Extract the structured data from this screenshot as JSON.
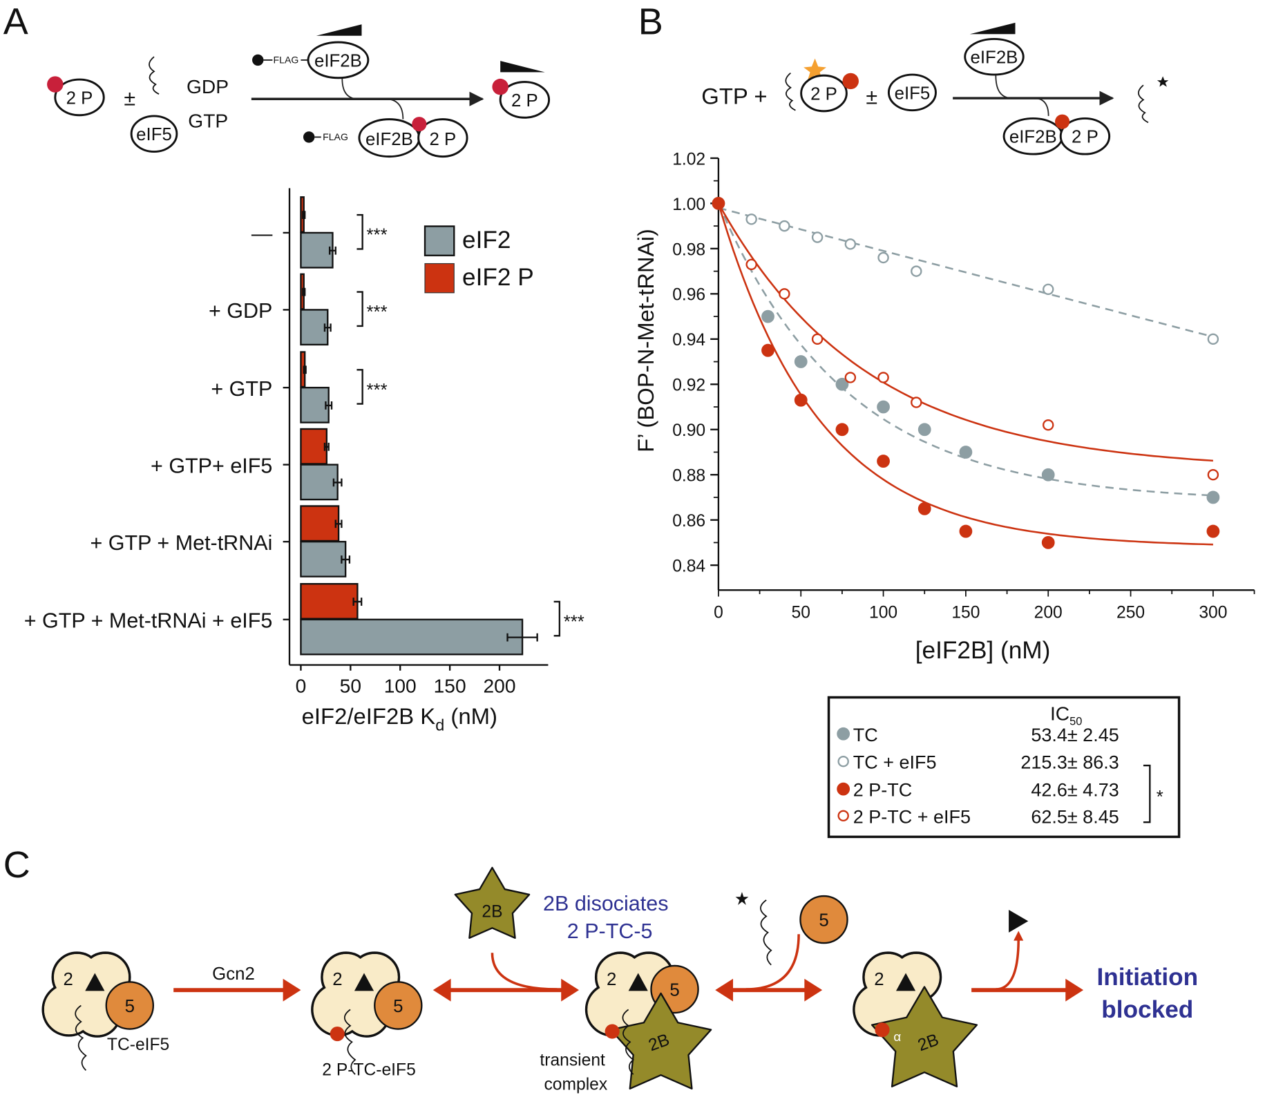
{
  "panel_labels": {
    "a": "A",
    "b": "B",
    "c": "C"
  },
  "scheme_a": {
    "eif2p": "2 P",
    "pm": "±",
    "gdp": "GDP",
    "gtp": "GTP",
    "eif5": "eIF5",
    "flag": "FLAG",
    "eif2b": "eIF2B",
    "complex_2p": "2 P",
    "product": "2 P"
  },
  "scheme_b": {
    "gtp_plus": "GTP +",
    "eif2p": "2 P",
    "pm": "±",
    "eif5": "eIF5",
    "eif2b": "eIF2B",
    "complex_eif2b": "eIF2B",
    "complex_2p": "2 P"
  },
  "chart_data": [
    {
      "type": "bar",
      "orientation": "horizontal",
      "categories": [
        "—",
        "+ GDP",
        "+ GTP",
        "+ GTP+ eIF5",
        "+ GTP + Met-tRNAi",
        "+ GTP + Met-tRNAi + eIF5"
      ],
      "series": [
        {
          "name": "eIF2 P",
          "color": "#cc3311",
          "values": [
            3,
            3,
            4,
            26,
            38,
            57
          ],
          "errors": [
            1,
            1,
            1,
            2,
            3,
            4
          ]
        },
        {
          "name": "eIF2",
          "color": "#8d9ea3",
          "values": [
            32,
            27,
            28,
            37,
            45,
            223
          ],
          "errors": [
            3,
            3,
            3,
            4,
            4,
            15
          ]
        }
      ],
      "significance": [
        "***",
        "***",
        "***",
        "",
        "",
        "***"
      ],
      "xlabel": "eIF2/eIF2B K",
      "xlabel_sub": "d",
      "xlabel_unit": " (nM)",
      "xticks": [
        "0",
        "50",
        "100",
        "150",
        "200"
      ],
      "xlim": [
        0,
        250
      ],
      "legend": {
        "placement": "top-right",
        "items": [
          "eIF2",
          "eIF2 P"
        ]
      }
    },
    {
      "type": "scatter",
      "xlabel": "[eIF2B] (nM)",
      "ylabel": "F’ (BOP-N-Met-tRNAi)",
      "xlim": [
        0,
        325
      ],
      "ylim": [
        0.829,
        1.02
      ],
      "xticks": [
        "0",
        "50",
        "100",
        "150",
        "200",
        "250",
        "300"
      ],
      "yticks": [
        "0.84",
        "0.86",
        "0.88",
        "0.90",
        "0.92",
        "0.94",
        "0.96",
        "0.98",
        "1.00",
        "1.02"
      ],
      "series": [
        {
          "name": "TC",
          "color": "#8d9ea3",
          "filled": true,
          "fit": "dashed",
          "fit_params": {
            "plateau": 0.868,
            "tau": 78
          },
          "x": [
            0,
            30,
            50,
            75,
            100,
            125,
            150,
            200,
            300
          ],
          "y": [
            1.0,
            0.95,
            0.93,
            0.92,
            0.91,
            0.9,
            0.89,
            0.88,
            0.87
          ]
        },
        {
          "name": "TC  + eIF5",
          "color": "#8d9ea3",
          "filled": false,
          "fit": "dashed",
          "fit_params": {
            "linear_start": 0.998,
            "linear_end": 0.941
          },
          "x": [
            20,
            40,
            60,
            80,
            100,
            120,
            200,
            300
          ],
          "y": [
            0.993,
            0.99,
            0.985,
            0.982,
            0.976,
            0.97,
            0.962,
            0.94
          ]
        },
        {
          "name": "2 P-TC",
          "color": "#cc3311",
          "filled": true,
          "fit": "solid",
          "fit_params": {
            "plateau": 0.848,
            "tau": 61.5
          },
          "x": [
            0,
            30,
            50,
            75,
            100,
            125,
            150,
            200,
            300
          ],
          "y": [
            1.0,
            0.935,
            0.913,
            0.9,
            0.886,
            0.865,
            0.855,
            0.85,
            0.855
          ]
        },
        {
          "name": "2 P-TC  + eIF5",
          "color": "#cc3311",
          "filled": false,
          "fit": "solid",
          "fit_params": {
            "plateau": 0.882,
            "tau": 90
          },
          "x": [
            20,
            40,
            60,
            80,
            100,
            120,
            200,
            300
          ],
          "y": [
            0.973,
            0.96,
            0.94,
            0.923,
            0.923,
            0.912,
            0.902,
            0.88
          ]
        }
      ],
      "ic50_table": {
        "header": "IC",
        "header_sub": "50",
        "values": [
          "53.4± 2.45",
          "215.3± 86.3",
          "42.6± 4.73",
          "62.5± 8.45"
        ],
        "significance": "*"
      }
    }
  ],
  "model_c": {
    "gcn2": "Gcn2",
    "tc_eif5": "TC-eIF5",
    "p_tc_eif5": "2 P-TC-eIF5",
    "transient": "transient",
    "complex": "complex",
    "dissociates_1": "2B disociates",
    "dissociates_2": "2 P-TC-5",
    "initiation": "Initiation",
    "blocked": "blocked",
    "eif2": "2",
    "eif5": "5",
    "eif2b": "2B",
    "alpha": "α",
    "colors": {
      "eif2": "#f9ebc8",
      "eif5": "#e08a3c",
      "eif2b": "#948a2a",
      "phospho": "#cc3311",
      "text_blue": "#2e3192",
      "arrow": "#cc3311"
    }
  }
}
